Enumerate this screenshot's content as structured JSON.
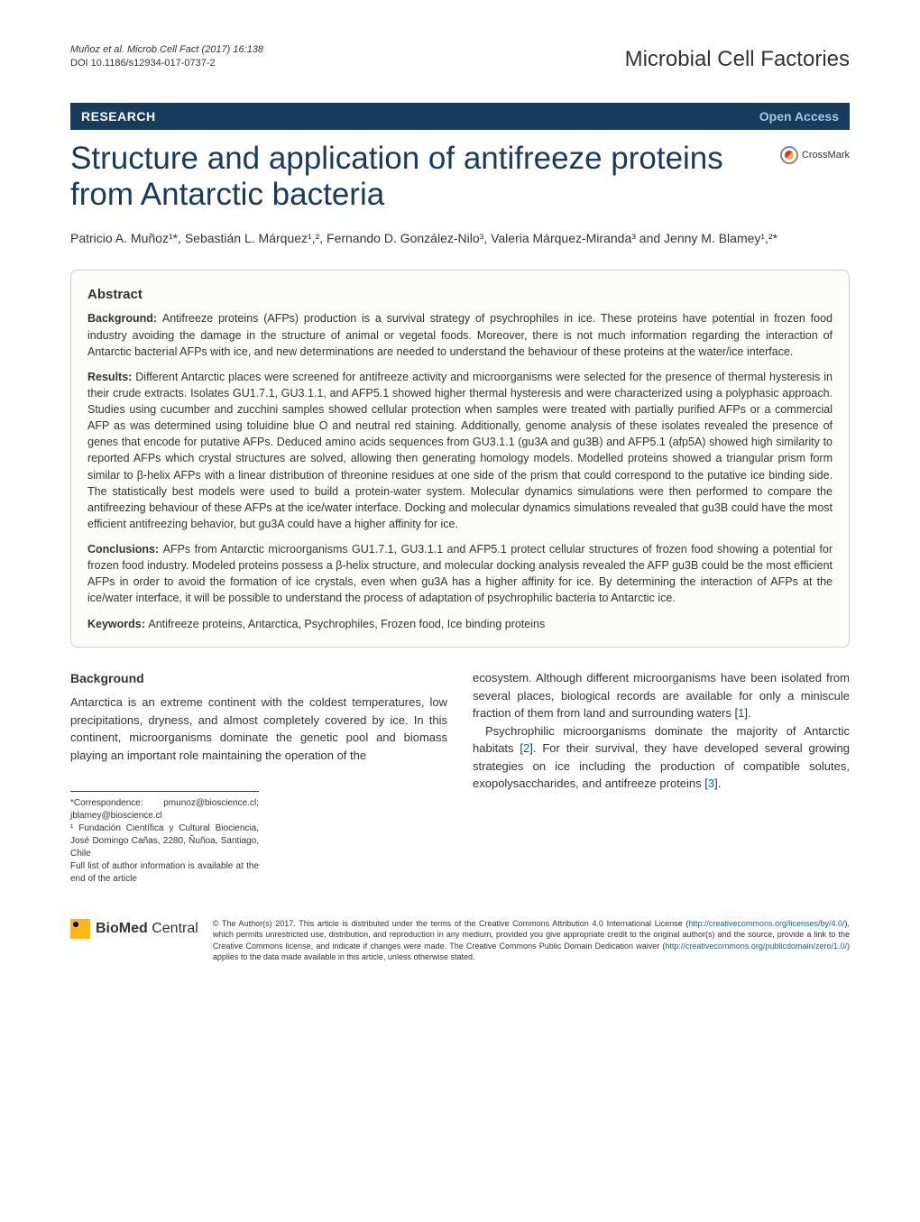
{
  "header": {
    "citation": "Muñoz et al. Microb Cell Fact  (2017) 16:138",
    "doi": "DOI 10.1186/s12934-017-0737-2",
    "journal": "Microbial Cell Factories"
  },
  "bar": {
    "research": "RESEARCH",
    "open_access": "Open Access"
  },
  "title": "Structure and application of antifreeze proteins from Antarctic bacteria",
  "crossmark_label": "CrossMark",
  "authors": "Patricio A. Muñoz¹*, Sebastián L. Márquez¹,², Fernando D. González-Nilo³, Valeria Márquez-Miranda³ and Jenny M. Blamey¹,²*",
  "abstract": {
    "heading": "Abstract",
    "background_label": "Background: ",
    "background": "Antifreeze proteins (AFPs) production is a survival strategy of psychrophiles in ice. These proteins have potential in frozen food industry avoiding the damage in the structure of animal or vegetal foods. Moreover, there is not much information regarding the interaction of Antarctic bacterial AFPs with ice, and new determinations are needed to understand the behaviour of these proteins at the water/ice interface.",
    "results_label": "Results: ",
    "results": "Different Antarctic places were screened for antifreeze activity and microorganisms were selected for the presence of thermal hysteresis in their crude extracts. Isolates GU1.7.1, GU3.1.1, and AFP5.1 showed higher thermal hysteresis and were characterized using a polyphasic approach. Studies using cucumber and zucchini samples showed cellular protection when samples were treated with partially purified AFPs or a commercial AFP as was determined using toluidine blue O and neutral red staining. Additionally, genome analysis of these isolates revealed the presence of genes that encode for putative AFPs. Deduced amino acids sequences from GU3.1.1 (gu3A and gu3B) and AFP5.1 (afp5A) showed high similarity to reported AFPs which crystal structures are solved, allowing then generating homology models. Modelled proteins showed a triangular prism form similar to β-helix AFPs with a linear distribution of threonine residues at one side of the prism that could correspond to the putative ice binding side. The statistically best models were used to build a protein-water system. Molecular dynamics simulations were then performed to compare the antifreezing behaviour of these AFPs at the ice/water interface. Docking and molecular dynamics simulations revealed that gu3B could have the most efficient antifreezing behavior, but gu3A could have a higher affinity for ice.",
    "conclusions_label": "Conclusions: ",
    "conclusions": "AFPs from Antarctic microorganisms GU1.7.1, GU3.1.1 and AFP5.1 protect cellular structures of frozen food showing a potential for frozen food industry. Modeled proteins possess a β-helix structure, and molecular docking analysis revealed the AFP gu3B could be the most efficient AFPs in order to avoid the formation of ice crystals, even when gu3A has a higher affinity for ice. By determining the interaction of AFPs at the ice/water interface, it will be possible to understand the process of adaptation of psychrophilic bacteria to Antarctic ice.",
    "keywords_label": "Keywords: ",
    "keywords": "Antifreeze proteins, Antarctica, Psychrophiles, Frozen food, Ice binding proteins"
  },
  "body": {
    "background_heading": "Background",
    "left_p1": "Antarctica is an extreme continent with the coldest temperatures, low precipitations, dryness, and almost completely covered by ice. In this continent, microorganisms dominate the genetic pool and biomass playing an important role maintaining the operation of the",
    "right_p1_a": "ecosystem. Although different microorganisms have been isolated from several places, biological records are available for only a miniscule fraction of them from land and surrounding waters [",
    "right_p1_ref": "1",
    "right_p1_b": "].",
    "right_p2_a": "Psychrophilic microorganisms dominate the majority of Antarctic habitats [",
    "right_p2_ref1": "2",
    "right_p2_b": "]. For their survival, they have developed several growing strategies on ice including the production of compatible solutes, exopolysaccharides, and antifreeze proteins [",
    "right_p2_ref2": "3",
    "right_p2_c": "]."
  },
  "correspondence": {
    "line1": "*Correspondence:  pmunoz@bioscience.cl; jblamey@bioscience.cl",
    "line2": "¹ Fundación Científica y Cultural Biociencia, José Domingo Cañas, 2280, Ñuñoa, Santiago, Chile",
    "line3": "Full list of author information is available at the end of the article"
  },
  "footer": {
    "bmc_bold": "BioMed",
    "bmc_light": " Central",
    "license_a": "© The Author(s) 2017. This article is distributed under the terms of the Creative Commons Attribution 4.0 International License (",
    "license_link1": "http://creativecommons.org/licenses/by/4.0/",
    "license_b": "), which permits unrestricted use, distribution, and reproduction in any medium, provided you give appropriate credit to the original author(s) and the source, provide a link to the Creative Commons license, and indicate if changes were made. The Creative Commons Public Domain Dedication waiver (",
    "license_link2": "http://creativecommons.org/publicdomain/zero/1.0/",
    "license_c": ") applies to the data made available in this article, unless otherwise stated."
  },
  "colors": {
    "bar_bg": "#173b5d",
    "title_color": "#173b5d",
    "open_access_color": "#a9c7dc",
    "link_color": "#0068b3",
    "abstract_bg": "#fcfcfa",
    "abstract_border": "#cfcfcf",
    "bmc_square": "#fdb913"
  }
}
